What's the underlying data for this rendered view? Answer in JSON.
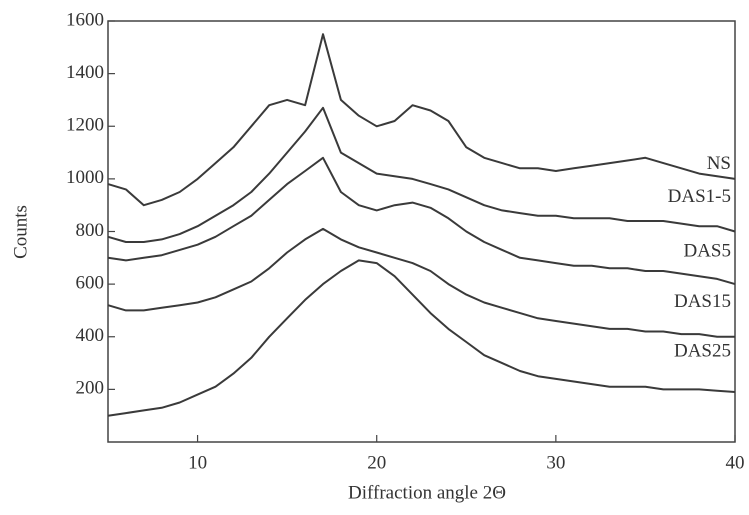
{
  "chart_data": {
    "type": "line",
    "x_label": "Diffraction angle 2Θ",
    "y_label": "Counts",
    "x": [
      5,
      6,
      7,
      8,
      9,
      10,
      11,
      12,
      13,
      14,
      15,
      16,
      17,
      18,
      19,
      20,
      21,
      22,
      23,
      24,
      25,
      26,
      27,
      28,
      29,
      30,
      31,
      32,
      33,
      34,
      35,
      36,
      37,
      38,
      39,
      40
    ],
    "xlim": [
      5,
      40
    ],
    "xticks": [
      10,
      20,
      30,
      40
    ],
    "ylim": [
      0,
      1600
    ],
    "yticks": [
      200,
      400,
      600,
      800,
      1000,
      1200,
      1400,
      1600
    ],
    "series": [
      {
        "name": "NS",
        "color": "#3a3a3a",
        "values": [
          980,
          960,
          900,
          920,
          950,
          1000,
          1060,
          1120,
          1200,
          1280,
          1300,
          1280,
          1550,
          1300,
          1240,
          1200,
          1220,
          1280,
          1260,
          1220,
          1120,
          1080,
          1060,
          1040,
          1040,
          1030,
          1040,
          1050,
          1060,
          1070,
          1080,
          1060,
          1040,
          1020,
          1010,
          1000
        ]
      },
      {
        "name": "DAS1-5",
        "color": "#3a3a3a",
        "values": [
          780,
          760,
          760,
          770,
          790,
          820,
          860,
          900,
          950,
          1020,
          1100,
          1180,
          1270,
          1100,
          1060,
          1020,
          1010,
          1000,
          980,
          960,
          930,
          900,
          880,
          870,
          860,
          860,
          850,
          850,
          850,
          840,
          840,
          840,
          830,
          820,
          820,
          800
        ]
      },
      {
        "name": "DAS5",
        "color": "#3a3a3a",
        "values": [
          700,
          690,
          700,
          710,
          730,
          750,
          780,
          820,
          860,
          920,
          980,
          1030,
          1080,
          950,
          900,
          880,
          900,
          910,
          890,
          850,
          800,
          760,
          730,
          700,
          690,
          680,
          670,
          670,
          660,
          660,
          650,
          650,
          640,
          630,
          620,
          600
        ]
      },
      {
        "name": "DAS15",
        "color": "#3a3a3a",
        "values": [
          520,
          500,
          500,
          510,
          520,
          530,
          550,
          580,
          610,
          660,
          720,
          770,
          810,
          770,
          740,
          720,
          700,
          680,
          650,
          600,
          560,
          530,
          510,
          490,
          470,
          460,
          450,
          440,
          430,
          430,
          420,
          420,
          410,
          410,
          400,
          400
        ]
      },
      {
        "name": "DAS25",
        "color": "#3a3a3a",
        "values": [
          100,
          110,
          120,
          130,
          150,
          180,
          210,
          260,
          320,
          400,
          470,
          540,
          600,
          650,
          690,
          680,
          630,
          560,
          490,
          430,
          380,
          330,
          300,
          270,
          250,
          240,
          230,
          220,
          210,
          210,
          210,
          200,
          200,
          200,
          195,
          190
        ]
      }
    ]
  }
}
